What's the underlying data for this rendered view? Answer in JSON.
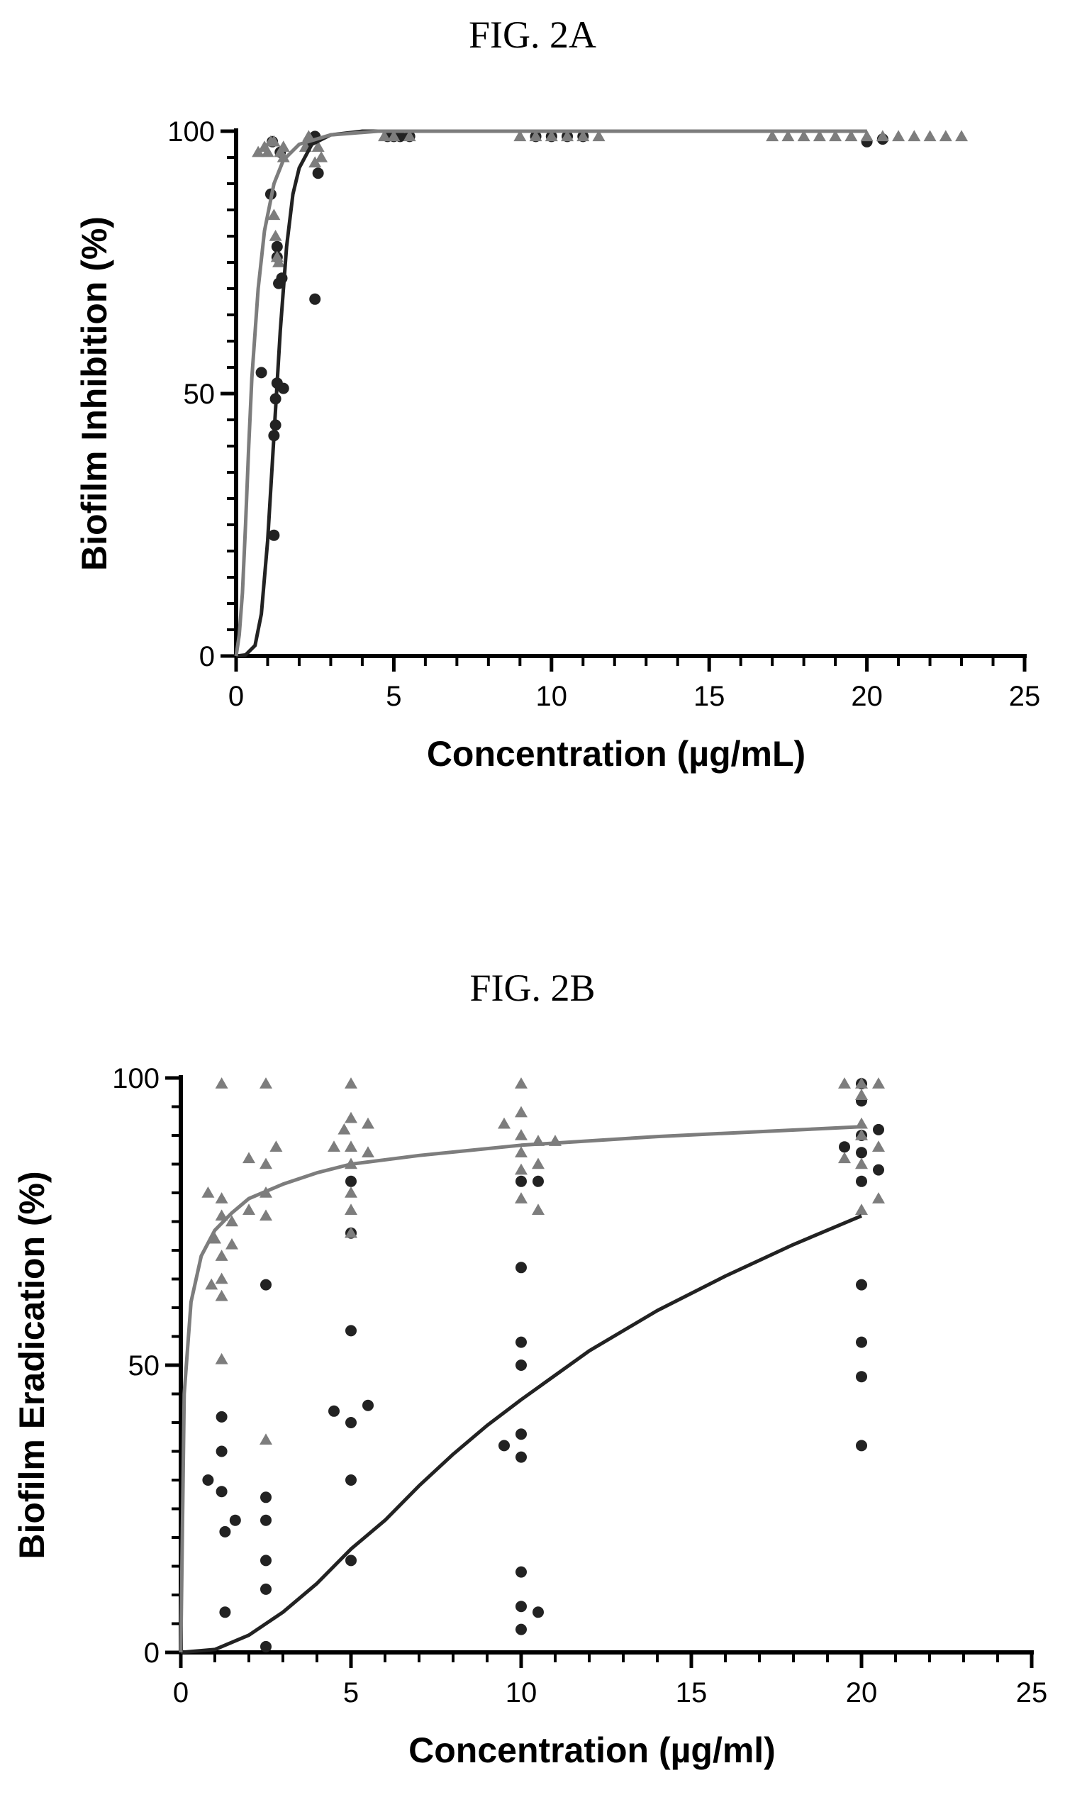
{
  "figures": [
    {
      "label": "FIG. 2A"
    },
    {
      "label": "FIG. 2B"
    }
  ],
  "colors": {
    "dark": "#222222",
    "grey": "#7d7d7d",
    "axis": "#000000"
  },
  "chart_data": [
    {
      "type": "scatter",
      "title": "FIG. 2A",
      "xlabel": "Concentration (µg/mL)",
      "ylabel": "Biofilm Inhibition (%)",
      "xlim": [
        0,
        25
      ],
      "ylim": [
        0,
        100
      ],
      "xticks": [
        0,
        5,
        10,
        15,
        20,
        25
      ],
      "yticks": [
        0,
        50,
        100
      ],
      "grid": false,
      "legend": "none",
      "series": [
        {
          "marker": "circle",
          "color": "#222222",
          "points": [
            [
              0.8,
              54
            ],
            [
              1.1,
              88
            ],
            [
              1.15,
              98
            ],
            [
              1.2,
              23
            ],
            [
              1.2,
              42
            ],
            [
              1.25,
              44
            ],
            [
              1.25,
              49
            ],
            [
              1.3,
              52
            ],
            [
              1.3,
              76
            ],
            [
              1.3,
              78
            ],
            [
              1.35,
              71
            ],
            [
              1.4,
              96
            ],
            [
              1.45,
              72
            ],
            [
              1.5,
              51
            ],
            [
              2.5,
              68
            ],
            [
              2.3,
              98
            ],
            [
              2.5,
              99
            ],
            [
              2.6,
              92
            ],
            [
              4.8,
              99
            ],
            [
              5.0,
              99
            ],
            [
              5.2,
              99
            ],
            [
              5.5,
              99
            ],
            [
              9.5,
              99
            ],
            [
              10.0,
              99
            ],
            [
              10.5,
              99
            ],
            [
              11.0,
              99
            ],
            [
              20.0,
              98
            ],
            [
              20.5,
              98.5
            ]
          ],
          "curve": [
            [
              0.0,
              0.0
            ],
            [
              0.3,
              0.2
            ],
            [
              0.6,
              2
            ],
            [
              0.8,
              8
            ],
            [
              1.0,
              22
            ],
            [
              1.2,
              42
            ],
            [
              1.4,
              62
            ],
            [
              1.6,
              78
            ],
            [
              1.8,
              88
            ],
            [
              2.0,
              93
            ],
            [
              2.4,
              97.5
            ],
            [
              3.0,
              99.3
            ],
            [
              4.0,
              100
            ],
            [
              10,
              100
            ],
            [
              20,
              100
            ]
          ]
        },
        {
          "marker": "triangle",
          "color": "#7d7d7d",
          "points": [
            [
              0.7,
              96
            ],
            [
              0.9,
              97
            ],
            [
              1.0,
              96
            ],
            [
              1.1,
              98
            ],
            [
              1.2,
              98
            ],
            [
              1.2,
              84
            ],
            [
              1.25,
              80
            ],
            [
              1.3,
              76
            ],
            [
              1.35,
              75
            ],
            [
              1.4,
              96
            ],
            [
              1.5,
              97
            ],
            [
              1.5,
              95
            ],
            [
              2.2,
              97
            ],
            [
              2.3,
              99
            ],
            [
              2.5,
              94
            ],
            [
              2.6,
              97
            ],
            [
              2.7,
              95
            ],
            [
              4.7,
              99
            ],
            [
              5.0,
              99
            ],
            [
              5.5,
              99
            ],
            [
              9.0,
              99
            ],
            [
              9.5,
              99
            ],
            [
              10.0,
              99
            ],
            [
              10.5,
              99
            ],
            [
              11.0,
              99
            ],
            [
              11.5,
              99
            ],
            [
              17.0,
              99
            ],
            [
              17.5,
              99
            ],
            [
              18.0,
              99
            ],
            [
              18.5,
              99
            ],
            [
              19.0,
              99
            ],
            [
              19.5,
              99
            ],
            [
              20.0,
              99
            ],
            [
              20.5,
              99
            ],
            [
              21.0,
              99
            ],
            [
              21.5,
              99
            ],
            [
              22.0,
              99
            ],
            [
              22.5,
              99
            ],
            [
              23.0,
              99
            ]
          ],
          "curve": [
            [
              0.0,
              0.0
            ],
            [
              0.1,
              4
            ],
            [
              0.2,
              12
            ],
            [
              0.3,
              25
            ],
            [
              0.4,
              40
            ],
            [
              0.5,
              53
            ],
            [
              0.7,
              70
            ],
            [
              0.9,
              81
            ],
            [
              1.2,
              90
            ],
            [
              1.5,
              94.5
            ],
            [
              2.0,
              97.5
            ],
            [
              3.0,
              99.3
            ],
            [
              4.5,
              100
            ],
            [
              10,
              100
            ],
            [
              20,
              100
            ]
          ]
        }
      ]
    },
    {
      "type": "scatter",
      "title": "FIG. 2B",
      "xlabel": "Concentration (µg/ml)",
      "ylabel": "Biofilm Eradication (%)",
      "xlim": [
        0,
        25
      ],
      "ylim": [
        0,
        100
      ],
      "xticks": [
        0,
        5,
        10,
        15,
        20,
        25
      ],
      "yticks": [
        0,
        50,
        100
      ],
      "grid": false,
      "legend": "none",
      "series": [
        {
          "marker": "circle",
          "color": "#222222",
          "points": [
            [
              0.8,
              30
            ],
            [
              1.2,
              41
            ],
            [
              1.2,
              35
            ],
            [
              1.2,
              28
            ],
            [
              1.3,
              21
            ],
            [
              1.3,
              7
            ],
            [
              1.6,
              23
            ],
            [
              2.5,
              64
            ],
            [
              2.5,
              27
            ],
            [
              2.5,
              23
            ],
            [
              2.5,
              16
            ],
            [
              2.5,
              11
            ],
            [
              2.5,
              1
            ],
            [
              4.5,
              42
            ],
            [
              5.0,
              82
            ],
            [
              5.0,
              73
            ],
            [
              5.0,
              56
            ],
            [
              5.0,
              40
            ],
            [
              5.0,
              30
            ],
            [
              5.0,
              16
            ],
            [
              5.5,
              43
            ],
            [
              9.5,
              36
            ],
            [
              10.0,
              82
            ],
            [
              10.0,
              67
            ],
            [
              10.0,
              54
            ],
            [
              10.0,
              50
            ],
            [
              10.0,
              38
            ],
            [
              10.0,
              34
            ],
            [
              10.0,
              14
            ],
            [
              10.0,
              8
            ],
            [
              10.0,
              4
            ],
            [
              10.5,
              82
            ],
            [
              10.5,
              7
            ],
            [
              19.5,
              88
            ],
            [
              20.0,
              99
            ],
            [
              20.0,
              96
            ],
            [
              20.0,
              90
            ],
            [
              20.0,
              87
            ],
            [
              20.0,
              82
            ],
            [
              20.0,
              64
            ],
            [
              20.0,
              54
            ],
            [
              20.0,
              48
            ],
            [
              20.0,
              36
            ],
            [
              20.5,
              91
            ],
            [
              20.5,
              84
            ]
          ],
          "curve": [
            [
              0.0,
              0.0
            ],
            [
              1,
              0.5
            ],
            [
              2,
              3
            ],
            [
              3,
              7
            ],
            [
              4,
              12
            ],
            [
              5,
              18
            ],
            [
              6,
              23
            ],
            [
              7,
              29
            ],
            [
              8,
              34.5
            ],
            [
              9,
              39.5
            ],
            [
              10,
              44
            ],
            [
              12,
              52.5
            ],
            [
              14,
              59.5
            ],
            [
              16,
              65.5
            ],
            [
              18,
              71
            ],
            [
              20,
              76
            ]
          ]
        },
        {
          "marker": "triangle",
          "color": "#7d7d7d",
          "points": [
            [
              0.8,
              80
            ],
            [
              0.9,
              64
            ],
            [
              1.0,
              72
            ],
            [
              1.2,
              99
            ],
            [
              1.2,
              79
            ],
            [
              1.2,
              76
            ],
            [
              1.2,
              69
            ],
            [
              1.2,
              65
            ],
            [
              1.2,
              62
            ],
            [
              1.2,
              51
            ],
            [
              1.5,
              75
            ],
            [
              1.5,
              71
            ],
            [
              2.0,
              86
            ],
            [
              2.0,
              77
            ],
            [
              2.5,
              99
            ],
            [
              2.5,
              85
            ],
            [
              2.5,
              80
            ],
            [
              2.5,
              76
            ],
            [
              2.5,
              37
            ],
            [
              2.8,
              88
            ],
            [
              4.5,
              88
            ],
            [
              4.8,
              91
            ],
            [
              5.0,
              99
            ],
            [
              5.0,
              93
            ],
            [
              5.0,
              88
            ],
            [
              5.0,
              85
            ],
            [
              5.0,
              80
            ],
            [
              5.0,
              77
            ],
            [
              5.0,
              73
            ],
            [
              5.5,
              92
            ],
            [
              5.5,
              87
            ],
            [
              9.5,
              92
            ],
            [
              10.0,
              99
            ],
            [
              10.0,
              94
            ],
            [
              10.0,
              90
            ],
            [
              10.0,
              87
            ],
            [
              10.0,
              84
            ],
            [
              10.0,
              79
            ],
            [
              10.5,
              89
            ],
            [
              10.5,
              85
            ],
            [
              10.5,
              77
            ],
            [
              11.0,
              89
            ],
            [
              19.5,
              99
            ],
            [
              19.5,
              86
            ],
            [
              20.0,
              99
            ],
            [
              20.0,
              97
            ],
            [
              20.0,
              92
            ],
            [
              20.0,
              90
            ],
            [
              20.0,
              85
            ],
            [
              20.0,
              77
            ],
            [
              20.5,
              99
            ],
            [
              20.5,
              88
            ],
            [
              20.5,
              79
            ]
          ],
          "curve": [
            [
              0.0,
              0.0
            ],
            [
              0.1,
              45
            ],
            [
              0.3,
              61
            ],
            [
              0.6,
              69
            ],
            [
              1.0,
              73.5
            ],
            [
              1.5,
              76.5
            ],
            [
              2.0,
              79
            ],
            [
              3.0,
              81.5
            ],
            [
              4.0,
              83.5
            ],
            [
              5.0,
              85
            ],
            [
              7.0,
              86.5
            ],
            [
              10.0,
              88.3
            ],
            [
              14.0,
              89.8
            ],
            [
              20.0,
              91.5
            ]
          ]
        }
      ]
    }
  ]
}
